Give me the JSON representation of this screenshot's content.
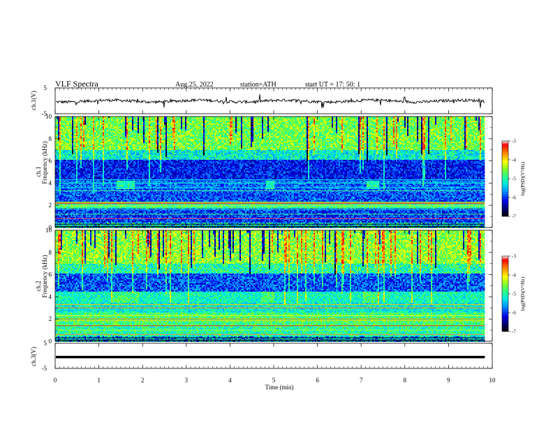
{
  "header": {
    "title": "VLF  Spectra",
    "date": "Aug.25, 2022",
    "station": "station=ATH",
    "start": "start  UT  =    17: 50: 1"
  },
  "chart_data": [
    {
      "id": "ch1-waveform",
      "type": "line",
      "ylabel": "ch.1(V)",
      "ylim": [
        -5,
        5
      ],
      "yticks": [
        "5",
        "-5"
      ],
      "xlim": [
        0,
        10
      ],
      "description_level": -0.1
    },
    {
      "id": "ch1-spectrogram",
      "type": "heatmap",
      "ylabel": "ch.1\nFrequency  (kHz)",
      "ylabel_lines": [
        "ch.1",
        "Frequency  (kHz)"
      ],
      "ylim": [
        0,
        10
      ],
      "yticks": [
        "0",
        "2",
        "4",
        "6",
        "8",
        "10"
      ],
      "xlim": [
        0,
        10
      ],
      "colorbar": {
        "label": "log(PSD)(V²/Hz)",
        "range": [
          -7,
          -3
        ],
        "ticks": [
          "-3",
          "-4",
          "-5",
          "-6",
          "-7"
        ]
      }
    },
    {
      "id": "ch2-spectrogram",
      "type": "heatmap",
      "ylabel_lines": [
        "ch.2",
        "Frequency  (kHz)"
      ],
      "ylim": [
        0,
        10
      ],
      "yticks": [
        "0",
        "2",
        "4",
        "6",
        "8",
        "10"
      ],
      "xlim": [
        0,
        10
      ],
      "colorbar": {
        "label": "log(PSD)(V²/Hz)",
        "range": [
          -7,
          -3
        ],
        "ticks": [
          "-3",
          "-4",
          "-5",
          "-6",
          "-7"
        ]
      }
    },
    {
      "id": "ch3-waveform",
      "type": "line",
      "ylabel": "ch.3(V)",
      "ylim": [
        -5,
        5
      ],
      "yticks": [
        "5",
        "-5"
      ],
      "xlim": [
        0,
        10
      ],
      "level": -0.5
    }
  ],
  "xaxis": {
    "label": "Time  (min)",
    "ticks": [
      "0",
      "1",
      "2",
      "3",
      "4",
      "5",
      "6",
      "7",
      "8",
      "9",
      "10"
    ],
    "data_end": 9.83
  },
  "colors": {
    "scale": [
      "#000000",
      "#00008b",
      "#0000ff",
      "#00bfff",
      "#00ffc8",
      "#00ff00",
      "#ffff00",
      "#ff8000",
      "#ff0000",
      "#ffffff"
    ]
  }
}
